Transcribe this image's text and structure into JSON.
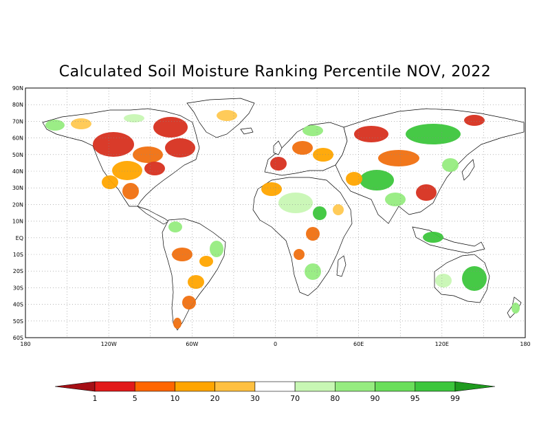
{
  "title": "Calculated Soil Moisture Ranking Percentile NOV, 2022",
  "lat_labels": [
    "90N",
    "80N",
    "70N",
    "60N",
    "50N",
    "40N",
    "30N",
    "20N",
    "10N",
    "EQ",
    "10S",
    "20S",
    "30S",
    "40S",
    "50S",
    "60S"
  ],
  "lon_labels": [
    "180",
    "120W",
    "60W",
    "0",
    "60E",
    "120E",
    "180"
  ],
  "colorbar": {
    "boundaries": [
      "1",
      "5",
      "10",
      "20",
      "30",
      "70",
      "80",
      "90",
      "95",
      "99"
    ],
    "colors": [
      "#a50f15",
      "#e21a1a",
      "#ff6600",
      "#ffa500",
      "#ffc040",
      "#ffffff",
      "#c8f7b4",
      "#96ec80",
      "#6ade5a",
      "#3cc63c",
      "#1e9a1e"
    ]
  },
  "legend_colors": {
    "very_dry": "#d7301f",
    "dry": "#f07010",
    "moderately_dry": "#ffa500",
    "slightly_dry": "#ffc850",
    "normal": "#ffffff",
    "slightly_wet": "#c8f7b4",
    "wet": "#96ec80",
    "very_wet": "#3cc63c"
  }
}
